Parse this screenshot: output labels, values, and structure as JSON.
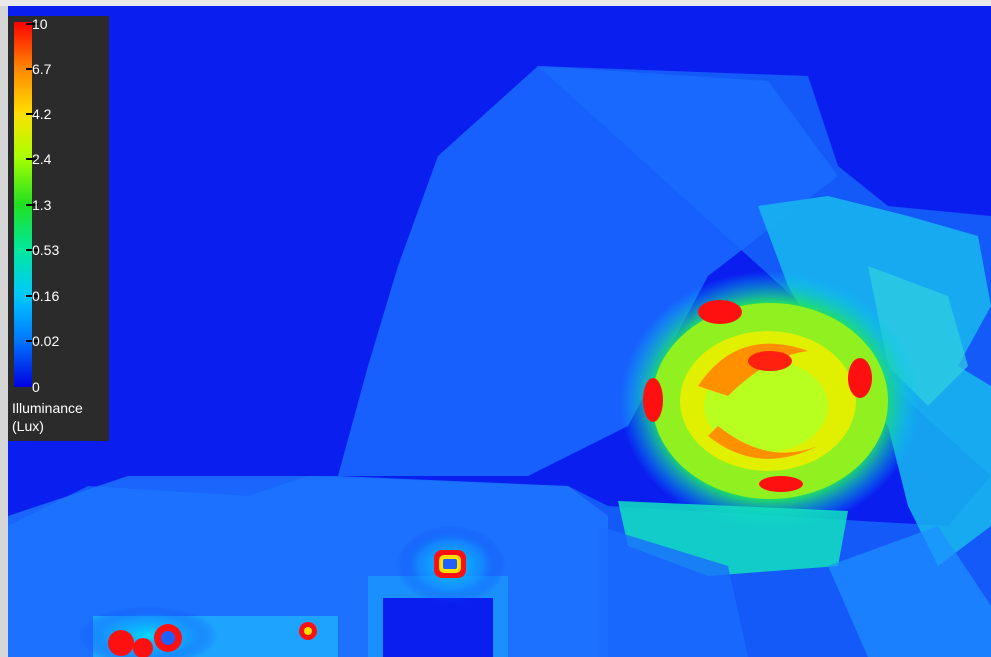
{
  "legend": {
    "labels": [
      "10",
      "6.7",
      "4.2",
      "2.4",
      "1.3",
      "0.53",
      "0.16",
      "0.02",
      "0"
    ],
    "title_line1": "Illuminance",
    "title_line2": "(Lux)"
  },
  "colors": {
    "background": "#0a1ef0",
    "scale_max": "#ff0000",
    "scale_min": "#0000e0"
  }
}
